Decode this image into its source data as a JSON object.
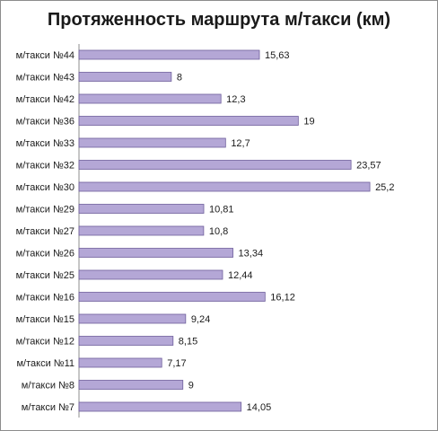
{
  "chart_data": {
    "type": "bar",
    "orientation": "horizontal",
    "title": "Протяженность маршрута м/такси (км)",
    "xlabel": "",
    "ylabel": "",
    "grid": false,
    "legend": "none",
    "bar_color": "#b4a7d6",
    "bar_border_color": "#6f5f9c",
    "categories": [
      "м/такси №44",
      "м/такси №43",
      "м/такси №42",
      "м/такси №36",
      "м/такси №33",
      "м/такси №32",
      "м/такси №30",
      "м/такси №29",
      "м/такси №27",
      "м/такси №26",
      "м/такси №25",
      "м/такси №16",
      "м/такси №15",
      "м/такси №12",
      "м/такси №11",
      "м/такси №8",
      "м/такси №7"
    ],
    "values": [
      15.63,
      8,
      12.3,
      19,
      12.7,
      23.57,
      25.2,
      10.81,
      10.8,
      13.34,
      12.44,
      16.12,
      9.24,
      8.15,
      7.17,
      9,
      14.05
    ],
    "value_labels": [
      "15,63",
      "8",
      "12,3",
      "19",
      "12,7",
      "23,57",
      "25,2",
      "10,81",
      "10,8",
      "13,34",
      "12,44",
      "16,12",
      "9,24",
      "8,15",
      "7,17",
      "9",
      "14,05"
    ]
  }
}
